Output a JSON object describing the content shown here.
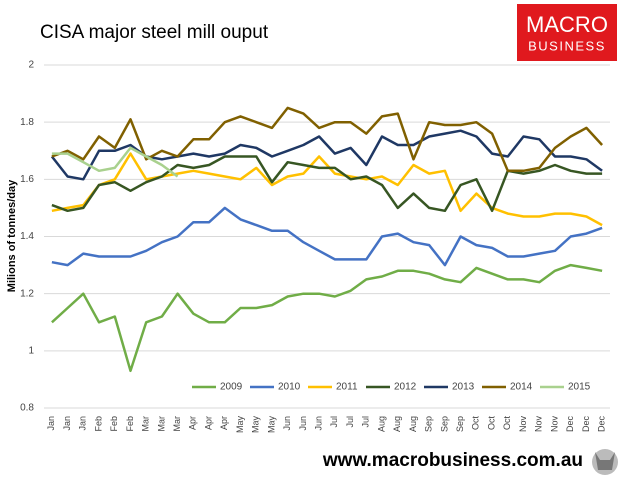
{
  "chart_data": {
    "type": "line",
    "title": "CISA major steel mill ouput",
    "y_label": "Milions of tonnes/day",
    "categories": [
      "Jan",
      "Jan",
      "Jan",
      "Feb",
      "Feb",
      "Feb",
      "Mar",
      "Mar",
      "Mar",
      "Apr",
      "Apr",
      "Apr",
      "May",
      "May",
      "May",
      "Jun",
      "Jun",
      "Jun",
      "Jul",
      "Jul",
      "Jul",
      "Aug",
      "Aug",
      "Aug",
      "Sep",
      "Sep",
      "Sep",
      "Oct",
      "Oct",
      "Oct",
      "Nov",
      "Nov",
      "Nov",
      "Dec",
      "Dec",
      "Dec"
    ],
    "ylim": [
      0.8,
      2
    ],
    "yticks": [
      0.8,
      1,
      1.2,
      1.4,
      1.6,
      1.8,
      2
    ],
    "grid": true,
    "legend": "bottom",
    "series": [
      {
        "name": "2009",
        "color": "#70ad47",
        "values": [
          1.1,
          1.15,
          1.2,
          1.1,
          1.12,
          0.93,
          1.1,
          1.12,
          1.2,
          1.13,
          1.1,
          1.1,
          1.15,
          1.15,
          1.16,
          1.19,
          1.2,
          1.2,
          1.19,
          1.21,
          1.25,
          1.26,
          1.28,
          1.28,
          1.27,
          1.25,
          1.24,
          1.29,
          1.27,
          1.25,
          1.25,
          1.24,
          1.28,
          1.3,
          1.29,
          1.28
        ]
      },
      {
        "name": "2010",
        "color": "#4472c4",
        "values": [
          1.31,
          1.3,
          1.34,
          1.33,
          1.33,
          1.33,
          1.35,
          1.38,
          1.4,
          1.45,
          1.45,
          1.5,
          1.46,
          1.44,
          1.42,
          1.42,
          1.38,
          1.35,
          1.32,
          1.32,
          1.32,
          1.4,
          1.41,
          1.38,
          1.37,
          1.3,
          1.4,
          1.37,
          1.36,
          1.33,
          1.33,
          1.34,
          1.35,
          1.4,
          1.41,
          1.43
        ]
      },
      {
        "name": "2011",
        "color": "#ffc000",
        "values": [
          1.49,
          1.5,
          1.51,
          1.58,
          1.6,
          1.69,
          1.6,
          1.61,
          1.62,
          1.63,
          1.62,
          1.61,
          1.6,
          1.64,
          1.58,
          1.61,
          1.62,
          1.68,
          1.62,
          1.61,
          1.6,
          1.61,
          1.58,
          1.65,
          1.62,
          1.63,
          1.49,
          1.55,
          1.5,
          1.48,
          1.47,
          1.47,
          1.48,
          1.48,
          1.47,
          1.44
        ]
      },
      {
        "name": "2012",
        "color": "#375623",
        "values": [
          1.51,
          1.49,
          1.5,
          1.58,
          1.59,
          1.56,
          1.59,
          1.61,
          1.65,
          1.64,
          1.65,
          1.68,
          1.68,
          1.68,
          1.59,
          1.66,
          1.65,
          1.64,
          1.64,
          1.6,
          1.61,
          1.58,
          1.5,
          1.55,
          1.5,
          1.49,
          1.58,
          1.6,
          1.49,
          1.63,
          1.62,
          1.63,
          1.65,
          1.63,
          1.62,
          1.62
        ]
      },
      {
        "name": "2013",
        "color": "#1f3864",
        "values": [
          1.68,
          1.61,
          1.6,
          1.7,
          1.7,
          1.72,
          1.68,
          1.67,
          1.68,
          1.69,
          1.68,
          1.69,
          1.72,
          1.71,
          1.68,
          1.7,
          1.72,
          1.75,
          1.69,
          1.71,
          1.65,
          1.75,
          1.72,
          1.72,
          1.75,
          1.76,
          1.77,
          1.75,
          1.69,
          1.68,
          1.75,
          1.74,
          1.68,
          1.68,
          1.67,
          1.63
        ]
      },
      {
        "name": "2014",
        "color": "#806000",
        "values": [
          1.68,
          1.7,
          1.67,
          1.75,
          1.71,
          1.81,
          1.67,
          1.7,
          1.68,
          1.74,
          1.74,
          1.8,
          1.82,
          1.8,
          1.78,
          1.85,
          1.83,
          1.78,
          1.8,
          1.8,
          1.76,
          1.82,
          1.83,
          1.67,
          1.8,
          1.79,
          1.79,
          1.8,
          1.76,
          1.63,
          1.63,
          1.64,
          1.71,
          1.75,
          1.78,
          1.72
        ]
      },
      {
        "name": "2015",
        "color": "#a9d18e",
        "values": [
          1.69,
          1.69,
          1.66,
          1.63,
          1.64,
          1.71,
          1.68,
          1.65,
          1.61,
          null,
          null,
          null,
          null,
          null,
          null,
          null,
          null,
          null,
          null,
          null,
          null,
          null,
          null,
          null,
          null,
          null,
          null,
          null,
          null,
          null,
          null,
          null,
          null,
          null,
          null,
          null
        ]
      }
    ]
  },
  "branding": {
    "logo_top": "MACRO",
    "logo_bottom": "BUSINESS",
    "website": "www.macrobusiness.com.au"
  }
}
